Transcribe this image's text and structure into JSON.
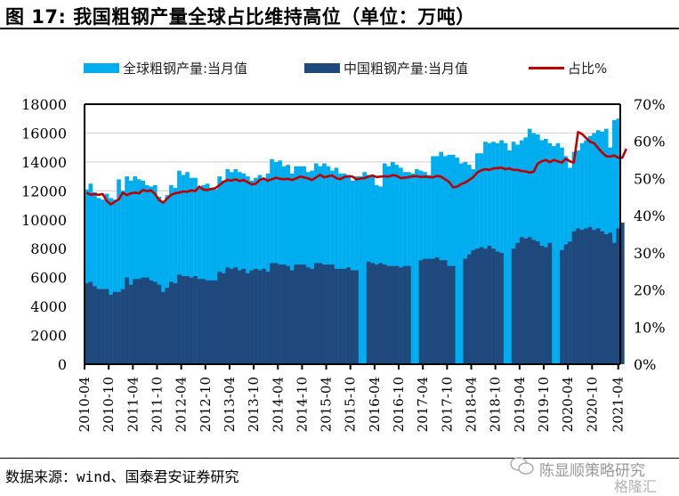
{
  "title": "图 17:  我国粗钢产量全球占比维持高位（单位：万吨）",
  "footer": "数据来源：wind、国泰君安证券研究",
  "watermark": {
    "line1": "陈显顺策略研究",
    "line2": "格隆汇"
  },
  "colors": {
    "global": "#00aeef",
    "china": "#1f497d",
    "share": "#c00000",
    "grid": "#d9d9d9"
  },
  "chart_data": {
    "type": "bar",
    "title": "我国粗钢产量全球占比维持高位（单位：万吨）",
    "legend": [
      "全球粗钢产量:当月值",
      "中国粗钢产量:当月值",
      "占比%"
    ],
    "legend_position": "top",
    "y_left": {
      "ticks": [
        "0",
        "2000",
        "4000",
        "6000",
        "8000",
        "10000",
        "12000",
        "14000",
        "16000",
        "18000"
      ],
      "range": [
        0,
        18000
      ]
    },
    "y_right": {
      "ticks": [
        "0%",
        "10%",
        "20%",
        "30%",
        "40%",
        "50%",
        "60%",
        "70%"
      ],
      "range": [
        0,
        70
      ]
    },
    "x_ticks": [
      "2010-04",
      "2010-10",
      "2011-04",
      "2011-10",
      "2012-04",
      "2012-10",
      "2013-04",
      "2013-10",
      "2014-04",
      "2014-10",
      "2015-04",
      "2015-10",
      "2016-04",
      "2016-10",
      "2017-04",
      "2017-10",
      "2018-04",
      "2018-10",
      "2019-04",
      "2019-10",
      "2020-04",
      "2020-10",
      "2021-04"
    ],
    "start_month": "2010-04",
    "grid": true,
    "series": [
      {
        "name": "全球粗钢产量:当月值",
        "axis": "left",
        "kind": "bar",
        "values": [
          12100,
          12500,
          11900,
          11500,
          11400,
          11800,
          11500,
          11400,
          12800,
          12000,
          13000,
          12700,
          13000,
          12800,
          12700,
          12400,
          12300,
          12400,
          11600,
          11300,
          11700,
          12400,
          12200,
          13400,
          13100,
          13300,
          12900,
          12900,
          12300,
          12400,
          12500,
          12200,
          12100,
          13000,
          12700,
          13500,
          13300,
          13500,
          13300,
          13200,
          13000,
          12700,
          12900,
          13100,
          12800,
          13200,
          14200,
          14000,
          14100,
          13700,
          13800,
          13200,
          13700,
          13700,
          13700,
          13300,
          13400,
          13900,
          13700,
          13900,
          13700,
          13400,
          13600,
          13200,
          13200,
          13100,
          12700,
          13000,
          13000,
          13300,
          13100,
          13000,
          12400,
          12300,
          13900,
          13700,
          14000,
          13800,
          13600,
          13300,
          13300,
          13200,
          13500,
          13400,
          13300,
          13100,
          14400,
          14400,
          14700,
          14400,
          14500,
          14500,
          14300,
          13900,
          14000,
          13800,
          13500,
          14600,
          14600,
          15400,
          15300,
          15400,
          15300,
          15500,
          15300,
          14800,
          15400,
          15200,
          15500,
          15700,
          16300,
          16000,
          15900,
          15500,
          15600,
          15300,
          15100,
          15300,
          15000,
          14400,
          13600,
          14700,
          14800,
          15300,
          15500,
          15800,
          16000,
          16200,
          16100,
          16300,
          15000,
          16900,
          17000
        ],
        "china_missing_note": "gaps Jan-Feb 2016-2020"
      },
      {
        "name": "中国粗钢产量:当月值",
        "axis": "left",
        "kind": "bar",
        "values": [
          5600,
          5700,
          5400,
          5200,
          5200,
          5200,
          4800,
          5000,
          5000,
          5200,
          6000,
          5500,
          5900,
          5900,
          6000,
          6000,
          5800,
          5700,
          5500,
          5000,
          5300,
          5700,
          5600,
          6200,
          6100,
          6100,
          6000,
          6100,
          5900,
          5900,
          5800,
          5800,
          5800,
          6400,
          6300,
          6700,
          6600,
          6700,
          6500,
          6600,
          6300,
          6500,
          6600,
          6500,
          6600,
          6400,
          7000,
          7000,
          6900,
          6900,
          6800,
          6500,
          6900,
          6900,
          6900,
          6700,
          6600,
          7000,
          7000,
          6900,
          6900,
          6900,
          6600,
          6600,
          6600,
          6700,
          6500,
          6500,
          null,
          null,
          7100,
          7000,
          6900,
          7000,
          6900,
          6800,
          6800,
          6800,
          6700,
          6800,
          6800,
          null,
          null,
          7200,
          7300,
          7300,
          7300,
          7400,
          7200,
          7200,
          6800,
          6800,
          null,
          null,
          7300,
          7600,
          7900,
          8000,
          8100,
          8000,
          8200,
          8000,
          7800,
          7700,
          null,
          null,
          8000,
          8400,
          8800,
          8700,
          8800,
          8600,
          8500,
          8200,
          8100,
          8400,
          null,
          null,
          7900,
          8300,
          8500,
          9200,
          9400,
          9300,
          9400,
          9500,
          9300,
          9400,
          9200,
          9000,
          9100,
          8400,
          9400,
          9800
        ]
      },
      {
        "name": "占比%",
        "axis": "right",
        "kind": "line",
        "values": [
          46.2,
          45.6,
          45.8,
          45.6,
          45.8,
          44.0,
          43.0,
          43.7,
          44.4,
          46.2,
          45.5,
          46.0,
          46.2,
          46.0,
          46.9,
          46.6,
          46.8,
          45.8,
          44.2,
          43.5,
          44.6,
          45.6,
          46.0,
          46.2,
          46.5,
          46.4,
          46.8,
          46.6,
          47.8,
          47.0,
          46.9,
          47.2,
          47.4,
          48.2,
          49.1,
          49.6,
          49.4,
          49.8,
          49.3,
          49.6,
          49.0,
          48.4,
          48.6,
          49.6,
          50.0,
          49.4,
          49.8,
          50.2,
          49.9,
          49.8,
          49.9,
          49.6,
          50.0,
          50.5,
          50.3,
          50.0,
          49.6,
          50.3,
          51.0,
          50.3,
          50.6,
          50.8,
          50.1,
          49.8,
          50.4,
          50.6,
          50.5,
          49.8,
          50.0,
          50.1,
          50.5,
          50.8,
          50.4,
          50.5,
          50.6,
          50.5,
          50.9,
          50.7,
          50.1,
          50.2,
          50.4,
          50.6,
          50.6,
          50.4,
          50.5,
          50.4,
          50.3,
          50.7,
          50.5,
          49.8,
          49.1,
          47.6,
          47.8,
          48.5,
          48.9,
          49.6,
          50.4,
          51.6,
          52.2,
          52.5,
          52.3,
          52.7,
          52.8,
          52.9,
          52.5,
          52.7,
          52.3,
          52.3,
          52.0,
          51.9,
          51.6,
          51.8,
          54.0,
          54.6,
          55.0,
          54.4,
          55.0,
          54.6,
          54.3,
          55.3,
          54.6,
          54.3,
          62.5,
          62.0,
          60.9,
          59.9,
          59.5,
          58.2,
          57.0,
          56.0,
          55.9,
          56.2,
          55.6,
          55.6,
          58.0
        ]
      }
    ]
  }
}
